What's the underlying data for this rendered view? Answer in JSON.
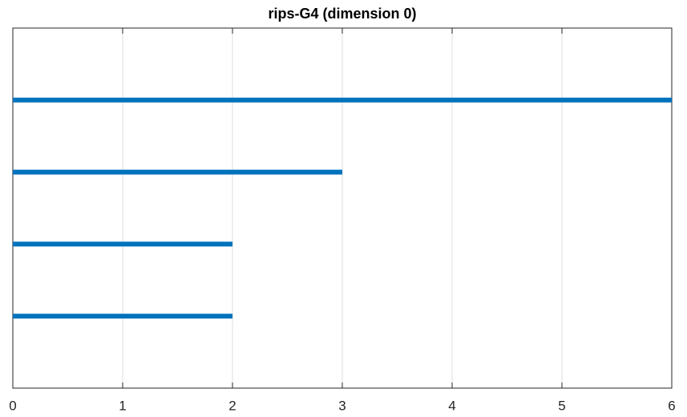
{
  "chart_data": {
    "type": "barcode",
    "title": "rips-G4 (dimension 0)",
    "values": [
      6,
      3,
      2,
      2
    ],
    "color": "#0072bd",
    "xlim": [
      0,
      6
    ],
    "xticks": [
      0,
      1,
      2,
      3,
      4,
      5,
      6
    ],
    "grid": true
  }
}
